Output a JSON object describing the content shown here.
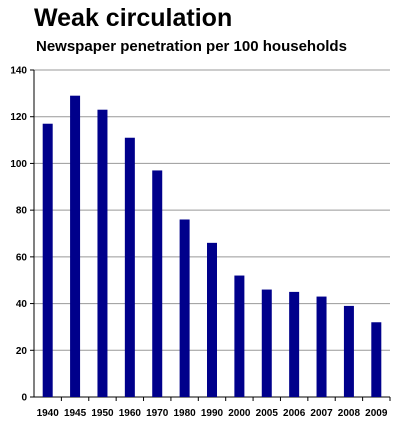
{
  "chart_data": {
    "type": "bar",
    "title": "Weak circulation",
    "subtitle": "Newspaper penetration per 100 households",
    "xlabel": "",
    "ylabel": "",
    "categories": [
      "1940",
      "1945",
      "1950",
      "1960",
      "1970",
      "1980",
      "1990",
      "2000",
      "2005",
      "2006",
      "2007",
      "2008",
      "2009"
    ],
    "values": [
      117,
      129,
      123,
      111,
      97,
      76,
      66,
      52,
      46,
      45,
      43,
      39,
      32
    ],
    "ylim": [
      0,
      140
    ],
    "yticks": [
      0,
      20,
      40,
      60,
      80,
      100,
      120,
      140
    ],
    "grid": true,
    "legend": "none",
    "bar_color": "#00008b",
    "grid_color": "#999999"
  }
}
